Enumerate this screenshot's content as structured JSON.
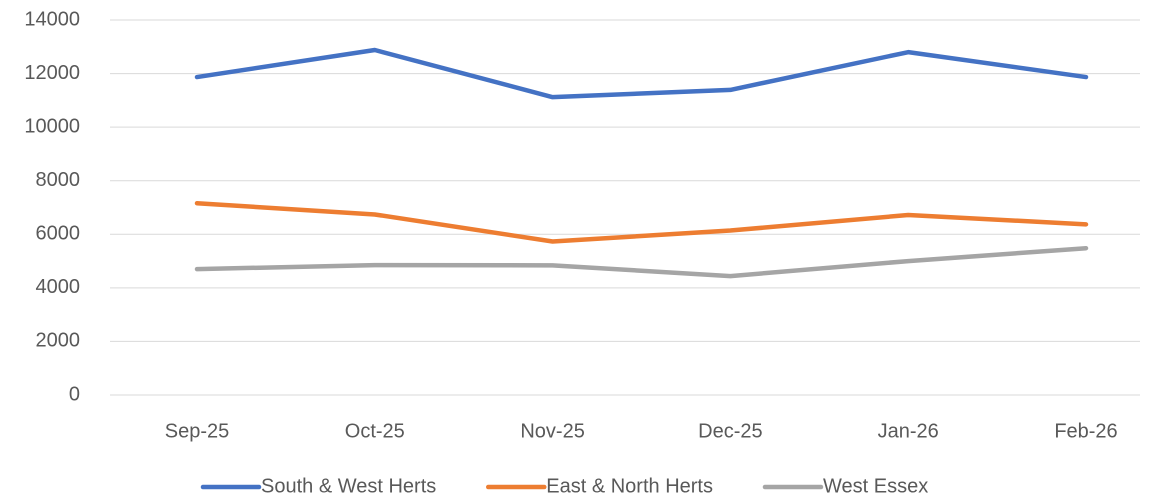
{
  "chart_data": {
    "type": "line",
    "categories": [
      "Sep-25",
      "Oct-25",
      "Nov-25",
      "Dec-25",
      "Jan-26",
      "Feb-26"
    ],
    "series": [
      {
        "name": "South & West Herts",
        "color": "#4472c4",
        "values": [
          11870,
          12880,
          11120,
          11390,
          12800,
          11870
        ]
      },
      {
        "name": "East & North Herts",
        "color": "#ed7d31",
        "values": [
          7160,
          6740,
          5730,
          6140,
          6720,
          6370
        ]
      },
      {
        "name": "West Essex",
        "color": "#a5a5a5",
        "values": [
          4700,
          4850,
          4840,
          4440,
          5000,
          5480
        ]
      }
    ],
    "ylim": [
      0,
      14000
    ],
    "yticks": [
      0,
      2000,
      4000,
      6000,
      8000,
      10000,
      12000,
      14000
    ],
    "grid": true,
    "legend": "bottom"
  }
}
